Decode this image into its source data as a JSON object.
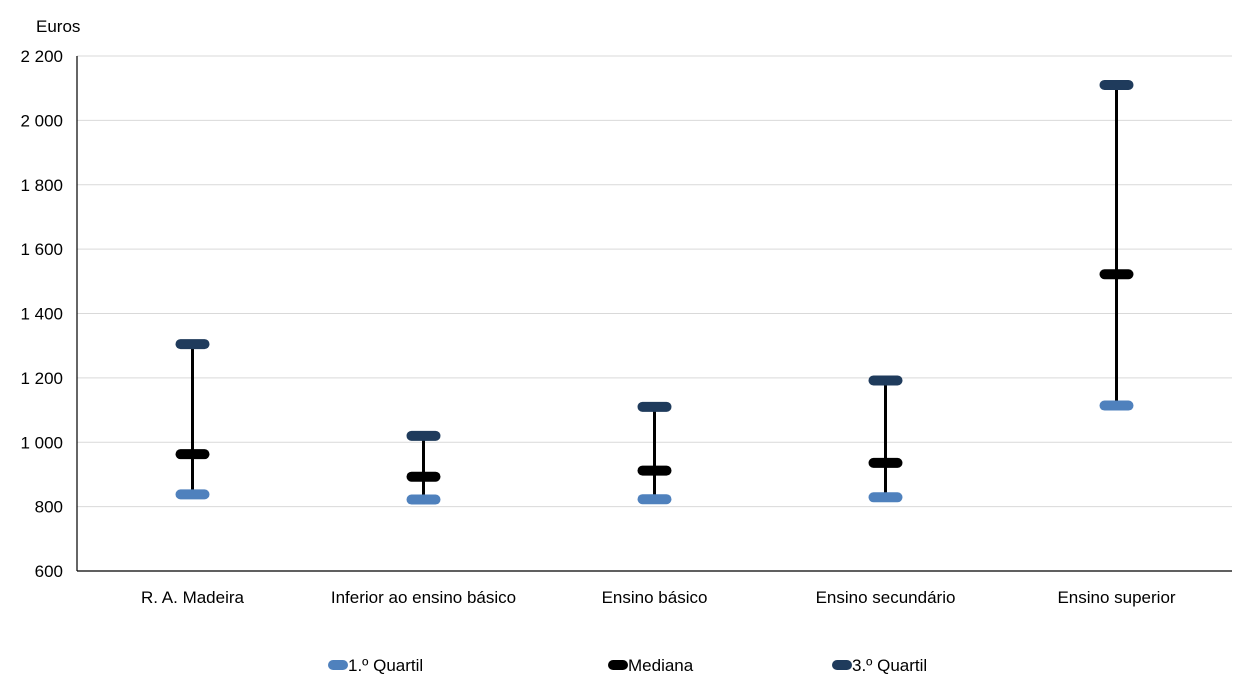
{
  "chart_data": {
    "type": "range",
    "y_unit_label": "Euros",
    "ylim": [
      600,
      2200
    ],
    "y_ticks": [
      600,
      800,
      1000,
      1200,
      1400,
      1600,
      1800,
      2000,
      2200
    ],
    "y_tick_labels": [
      "600",
      "800",
      "1 000",
      "1 200",
      "1 400",
      "1 600",
      "1 800",
      "2 000",
      "2 200"
    ],
    "grid": true,
    "legend_position": "bottom",
    "categories": [
      "R. A. Madeira",
      "Inferior ao ensino básico",
      "Ensino básico",
      "Ensino secundário",
      "Ensino superior"
    ],
    "series": [
      {
        "name": "1.º Quartil",
        "color": "#4f81bd",
        "values": [
          838,
          822,
          823,
          829,
          1114
        ]
      },
      {
        "name": "Mediana",
        "color": "#000000",
        "values": [
          963,
          893,
          912,
          936,
          1522
        ]
      },
      {
        "name": "3.º Quartil",
        "color": "#1f3b5c",
        "values": [
          1305,
          1020,
          1110,
          1192,
          2110
        ]
      }
    ]
  }
}
